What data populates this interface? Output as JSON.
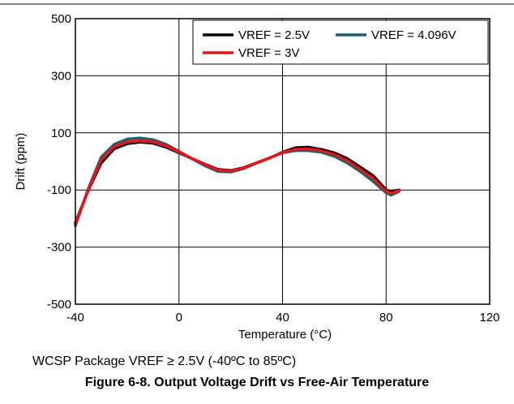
{
  "chart_data": {
    "type": "line",
    "title": "",
    "xlabel": "Temperature (°C)",
    "ylabel": "Drift (ppm)",
    "xlim": [
      -40,
      120
    ],
    "ylim": [
      -500,
      500
    ],
    "xticks": [
      -40,
      0,
      40,
      80,
      120
    ],
    "yticks": [
      -500,
      -300,
      -100,
      100,
      300,
      500
    ],
    "grid": true,
    "legend_position": "top-right",
    "series": [
      {
        "name": "VREF = 2.5V",
        "color": "#000000",
        "x": [
          -40,
          -35,
          -30,
          -25,
          -20,
          -15,
          -10,
          -5,
          0,
          5,
          10,
          15,
          20,
          25,
          30,
          35,
          40,
          45,
          50,
          55,
          60,
          65,
          70,
          75,
          80,
          82,
          85
        ],
        "y": [
          -215,
          -100,
          -5,
          45,
          62,
          68,
          64,
          50,
          30,
          10,
          -10,
          -28,
          -32,
          -22,
          -5,
          12,
          32,
          48,
          50,
          42,
          30,
          10,
          -20,
          -50,
          -100,
          -105,
          -100
        ]
      },
      {
        "name": "VREF = 4.096V",
        "color": "#1f5f6e",
        "x": [
          -40,
          -35,
          -30,
          -25,
          -20,
          -15,
          -10,
          -5,
          0,
          5,
          10,
          15,
          20,
          25,
          30,
          35,
          40,
          45,
          50,
          55,
          60,
          65,
          70,
          75,
          80,
          82,
          85
        ],
        "y": [
          -225,
          -95,
          15,
          60,
          78,
          82,
          76,
          60,
          35,
          10,
          -15,
          -35,
          -37,
          -25,
          -5,
          12,
          30,
          38,
          38,
          32,
          18,
          -5,
          -35,
          -70,
          -110,
          -118,
          -105
        ]
      },
      {
        "name": "VREF = 3V",
        "color": "#e8141c",
        "x": [
          -40,
          -35,
          -30,
          -25,
          -20,
          -15,
          -10,
          -5,
          0,
          5,
          10,
          15,
          20,
          25,
          30,
          35,
          40,
          45,
          50,
          55,
          60,
          65,
          70,
          75,
          80,
          82,
          85
        ],
        "y": [
          -220,
          -98,
          5,
          52,
          68,
          72,
          68,
          54,
          32,
          10,
          -12,
          -30,
          -34,
          -23,
          -5,
          12,
          31,
          42,
          44,
          37,
          24,
          2,
          -28,
          -60,
          -105,
          -112,
          -102
        ]
      }
    ]
  },
  "caption": "WCSP Package VREF ≥ 2.5V (-40ºC to 85ºC)",
  "figure_title": "Figure 6-8. Output Voltage Drift vs Free-Air Temperature"
}
